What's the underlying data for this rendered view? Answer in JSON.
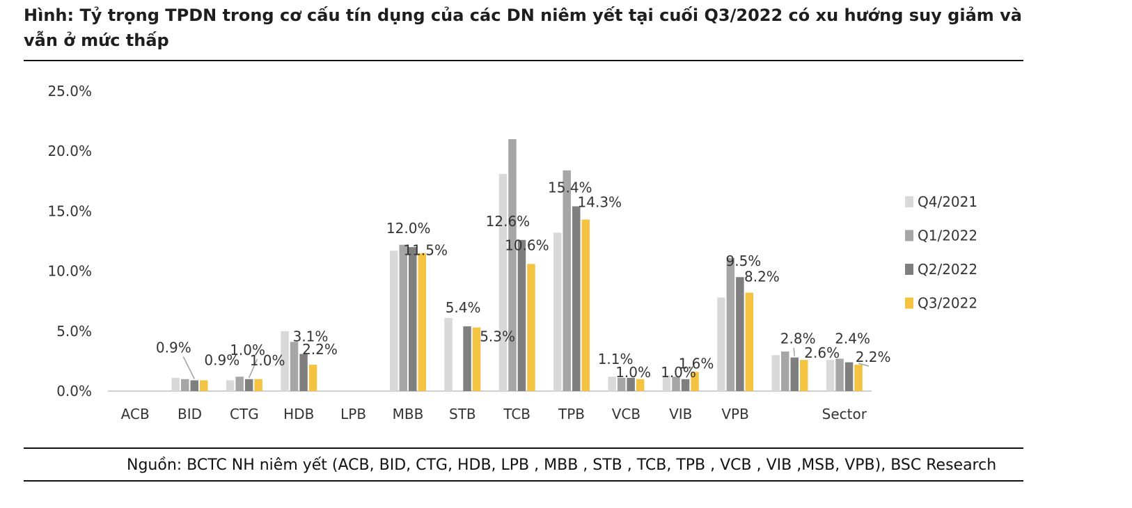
{
  "header": {
    "title": "Hình: Tỷ trọng TPDN trong cơ cấu tín dụng của các DN niêm yết tại cuối Q3/2022 có xu hướng suy giảm và vẫn ở mức thấp"
  },
  "footer": {
    "source": "Nguồn: BCTC NH niêm yết (ACB, BID, CTG, HDB, LPB , MBB , STB , TCB, TPB , VCB , VIB ,MSB, VPB), BSC Research"
  },
  "chart_data": {
    "type": "bar",
    "title": "",
    "xlabel": "",
    "ylabel": "",
    "ylim": [
      0,
      25
    ],
    "yticks": [
      "0.0%",
      "5.0%",
      "10.0%",
      "15.0%",
      "20.0%",
      "25.0%"
    ],
    "grid": false,
    "legend_position": "right",
    "categories": [
      "ACB",
      "BID",
      "CTG",
      "HDB",
      "LPB",
      "MBB",
      "STB",
      "TCB",
      "TPB",
      "VCB",
      "VIB",
      "VPB",
      "",
      "Sector"
    ],
    "series": [
      {
        "name": "Q4/2021",
        "color": "#d9d9d9",
        "values": [
          0,
          1.1,
          0.9,
          5.0,
          0,
          11.7,
          6.1,
          18.1,
          13.2,
          1.2,
          1.3,
          7.8,
          3.0,
          2.6
        ]
      },
      {
        "name": "Q1/2022",
        "color": "#a6a6a6",
        "values": [
          0,
          1.0,
          1.2,
          4.1,
          0,
          12.2,
          0,
          21.0,
          18.4,
          1.1,
          1.2,
          11.1,
          3.3,
          2.7
        ]
      },
      {
        "name": "Q2/2022",
        "color": "#7f7f7f",
        "values": [
          0,
          0.9,
          1.0,
          3.1,
          0,
          12.0,
          5.4,
          12.6,
          15.4,
          1.1,
          1.0,
          9.5,
          2.8,
          2.4
        ]
      },
      {
        "name": "Q3/2022",
        "color": "#f5c342",
        "values": [
          0,
          0.9,
          1.0,
          2.2,
          0,
          11.5,
          5.3,
          10.6,
          14.3,
          1.0,
          1.6,
          8.2,
          2.6,
          2.2
        ]
      }
    ],
    "data_labels": [
      {
        "category": "BID",
        "series": "Q2/2022",
        "text": "0.9%"
      },
      {
        "category": "BID",
        "series": "Q3/2022",
        "text": "0.9%"
      },
      {
        "category": "CTG",
        "series": "Q2/2022",
        "text": "1.0%"
      },
      {
        "category": "CTG",
        "series": "Q3/2022",
        "text": "1.0%"
      },
      {
        "category": "HDB",
        "series": "Q2/2022",
        "text": "3.1%"
      },
      {
        "category": "HDB",
        "series": "Q3/2022",
        "text": "2.2%"
      },
      {
        "category": "MBB",
        "series": "Q2/2022",
        "text": "12.0%"
      },
      {
        "category": "MBB",
        "series": "Q3/2022",
        "text": "11.5%"
      },
      {
        "category": "STB",
        "series": "Q2/2022",
        "text": "5.4%"
      },
      {
        "category": "STB",
        "series": "Q3/2022",
        "text": "5.3%"
      },
      {
        "category": "TCB",
        "series": "Q2/2022",
        "text": "12.6%"
      },
      {
        "category": "TCB",
        "series": "Q3/2022",
        "text": "10.6%"
      },
      {
        "category": "TPB",
        "series": "Q2/2022",
        "text": "15.4%"
      },
      {
        "category": "TPB",
        "series": "Q3/2022",
        "text": "14.3%"
      },
      {
        "category": "VCB",
        "series": "Q2/2022",
        "text": "1.1%"
      },
      {
        "category": "VCB",
        "series": "Q3/2022",
        "text": "1.0%"
      },
      {
        "category": "VIB",
        "series": "Q2/2022",
        "text": "1.0%"
      },
      {
        "category": "VIB",
        "series": "Q3/2022",
        "text": "1.6%"
      },
      {
        "category": "VPB",
        "series": "Q2/2022",
        "text": "9.5%"
      },
      {
        "category": "VPB",
        "series": "Q3/2022",
        "text": "8.2%"
      },
      {
        "category": "",
        "series": "Q2/2022",
        "text": "2.8%"
      },
      {
        "category": "",
        "series": "Q3/2022",
        "text": "2.6%"
      },
      {
        "category": "Sector",
        "series": "Q2/2022",
        "text": "2.4%"
      },
      {
        "category": "Sector",
        "series": "Q3/2022",
        "text": "2.2%"
      }
    ]
  }
}
